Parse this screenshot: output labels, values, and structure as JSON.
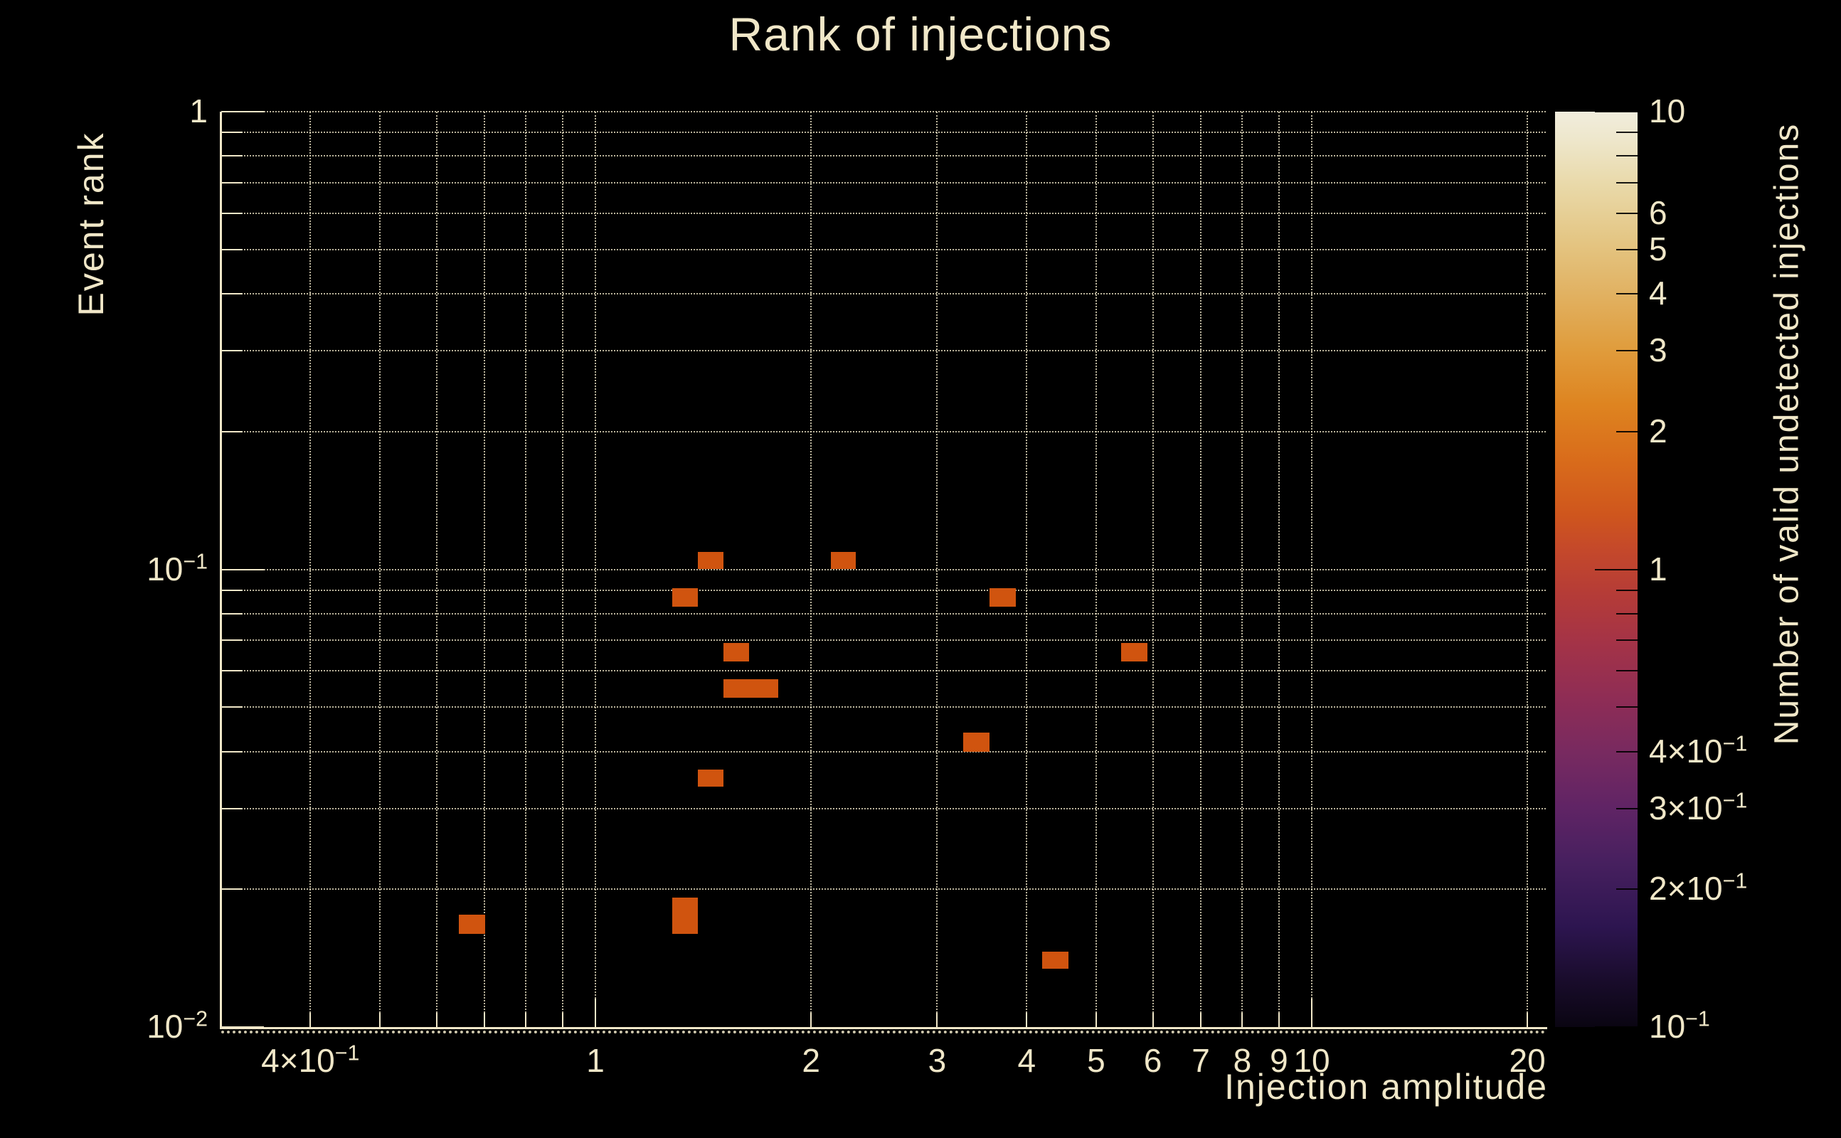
{
  "title": "Rank of injections",
  "colors": {
    "background": "#000000",
    "text": "#f0e7c8",
    "grid": "#f0e7c8",
    "cell": "#d0540f"
  },
  "axes": {
    "x": {
      "label": "Injection amplitude",
      "scale": "log",
      "range": [
        0.3,
        21.2
      ],
      "grid_values": [
        0.4,
        0.5,
        0.6,
        0.7,
        0.8,
        0.9,
        1,
        2,
        3,
        4,
        5,
        6,
        7,
        8,
        9,
        10,
        20
      ],
      "major_tick_values": [
        1,
        10
      ],
      "ticks": [
        {
          "v": 0.4,
          "pre": "4×10",
          "sup": "−1",
          "text": "4x10^-1"
        },
        {
          "v": 1,
          "pre": "1",
          "sup": "",
          "text": "1"
        },
        {
          "v": 2,
          "pre": "2",
          "sup": "",
          "text": "2"
        },
        {
          "v": 3,
          "pre": "3",
          "sup": "",
          "text": "3"
        },
        {
          "v": 4,
          "pre": "4",
          "sup": "",
          "text": "4"
        },
        {
          "v": 5,
          "pre": "5",
          "sup": "",
          "text": "5"
        },
        {
          "v": 6,
          "pre": "6",
          "sup": "",
          "text": "6"
        },
        {
          "v": 7,
          "pre": "7",
          "sup": "",
          "text": "7"
        },
        {
          "v": 8,
          "pre": "8",
          "sup": "",
          "text": "8"
        },
        {
          "v": 9,
          "pre": "9",
          "sup": "",
          "text": "9"
        },
        {
          "v": 10,
          "pre": "10",
          "sup": "",
          "text": "10"
        },
        {
          "v": 20,
          "pre": "20",
          "sup": "",
          "text": "20"
        }
      ]
    },
    "y": {
      "label": "Event rank",
      "scale": "log",
      "range": [
        0.01,
        1
      ],
      "grid_values": [
        1,
        0.9,
        0.8,
        0.7,
        0.6,
        0.5,
        0.4,
        0.3,
        0.2,
        0.1,
        0.09,
        0.08,
        0.07,
        0.06,
        0.05,
        0.04,
        0.03,
        0.02
      ],
      "major_tick_values": [
        1,
        0.1,
        0.01
      ],
      "ticks": [
        {
          "v": 1,
          "pre": "1",
          "sup": "",
          "text": "1"
        },
        {
          "v": 0.1,
          "pre": "10",
          "sup": "−1",
          "text": "10^-1"
        },
        {
          "v": 0.01,
          "pre": "10",
          "sup": "−2",
          "text": "10^-2"
        }
      ]
    }
  },
  "colorbar": {
    "label": "Number of valid undetected injections",
    "scale": "log",
    "range": [
      0.1,
      10
    ],
    "major_tick_values": [
      10,
      1,
      0.1
    ],
    "minor_tick_values": [
      9,
      8,
      7,
      6,
      5,
      4,
      3,
      2,
      0.9,
      0.8,
      0.7,
      0.6,
      0.5,
      0.4,
      0.3,
      0.2
    ],
    "ticks": [
      {
        "v": 10,
        "pre": "10",
        "sup": "",
        "text": "10"
      },
      {
        "v": 6,
        "pre": "6",
        "sup": "",
        "text": "6"
      },
      {
        "v": 5,
        "pre": "5",
        "sup": "",
        "text": "5"
      },
      {
        "v": 4,
        "pre": "4",
        "sup": "",
        "text": "4"
      },
      {
        "v": 3,
        "pre": "3",
        "sup": "",
        "text": "3"
      },
      {
        "v": 2,
        "pre": "2",
        "sup": "",
        "text": "2"
      },
      {
        "v": 1,
        "pre": "1",
        "sup": "",
        "text": "1"
      },
      {
        "v": 0.4,
        "pre": "4×10",
        "sup": "−1",
        "text": "4x10^-1"
      },
      {
        "v": 0.3,
        "pre": "3×10",
        "sup": "−1",
        "text": "3x10^-1"
      },
      {
        "v": 0.2,
        "pre": "2×10",
        "sup": "−1",
        "text": "2x10^-1"
      },
      {
        "v": 0.1,
        "pre": "10",
        "sup": "−1",
        "text": "10^-1"
      }
    ],
    "gradient_stops": [
      [
        0.0,
        "#0a0512"
      ],
      [
        0.05,
        "#190c2b"
      ],
      [
        0.11,
        "#2d1550"
      ],
      [
        0.18,
        "#47205f"
      ],
      [
        0.24,
        "#602465"
      ],
      [
        0.3,
        "#782a60"
      ],
      [
        0.36,
        "#8f2d55"
      ],
      [
        0.42,
        "#a43347"
      ],
      [
        0.47,
        "#b43b38"
      ],
      [
        0.52,
        "#c4482b"
      ],
      [
        0.56,
        "#cf561d"
      ],
      [
        0.62,
        "#d96c1b"
      ],
      [
        0.68,
        "#de8420"
      ],
      [
        0.74,
        "#e09c3c"
      ],
      [
        0.8,
        "#e1b161"
      ],
      [
        0.86,
        "#e4c684"
      ],
      [
        0.92,
        "#e9d9a9"
      ],
      [
        0.97,
        "#eee7cc"
      ],
      [
        1.0,
        "#f1eddd"
      ]
    ]
  },
  "chart_data": {
    "type": "heatmap",
    "title": "Rank of injections",
    "xlabel": "Injection amplitude",
    "ylabel": "Event rank",
    "colorbar_label": "Number of valid undetected injections",
    "xscale": "log",
    "yscale": "log",
    "zscale": "log",
    "xlim": [
      0.3,
      21.2
    ],
    "ylim": [
      0.01,
      1
    ],
    "zlim": [
      0.1,
      10
    ],
    "grid": true,
    "cell_color": "#d0540f",
    "cells": [
      {
        "x": [
          1.39,
          1.51
        ],
        "y": [
          0.1,
          0.109
        ],
        "value": 1
      },
      {
        "x": [
          2.13,
          2.31
        ],
        "y": [
          0.1,
          0.109
        ],
        "value": 1
      },
      {
        "x": [
          1.28,
          1.39
        ],
        "y": [
          0.083,
          0.091
        ],
        "value": 1
      },
      {
        "x": [
          3.55,
          3.86
        ],
        "y": [
          0.083,
          0.091
        ],
        "value": 1
      },
      {
        "x": [
          1.51,
          1.64
        ],
        "y": [
          0.063,
          0.069
        ],
        "value": 1
      },
      {
        "x": [
          5.42,
          5.9
        ],
        "y": [
          0.063,
          0.069
        ],
        "value": 1
      },
      {
        "x": [
          1.51,
          1.8
        ],
        "y": [
          0.0525,
          0.0575
        ],
        "value": 1
      },
      {
        "x": [
          3.26,
          3.55
        ],
        "y": [
          0.04,
          0.044
        ],
        "value": 1
      },
      {
        "x": [
          1.39,
          1.51
        ],
        "y": [
          0.0335,
          0.0365
        ],
        "value": 1
      },
      {
        "x": [
          1.28,
          1.39
        ],
        "y": [
          0.016,
          0.0192
        ],
        "value": 1
      },
      {
        "x": [
          0.645,
          0.702
        ],
        "y": [
          0.016,
          0.0176
        ],
        "value": 1
      },
      {
        "x": [
          4.2,
          4.58
        ],
        "y": [
          0.0134,
          0.0146
        ],
        "value": 1
      }
    ]
  }
}
